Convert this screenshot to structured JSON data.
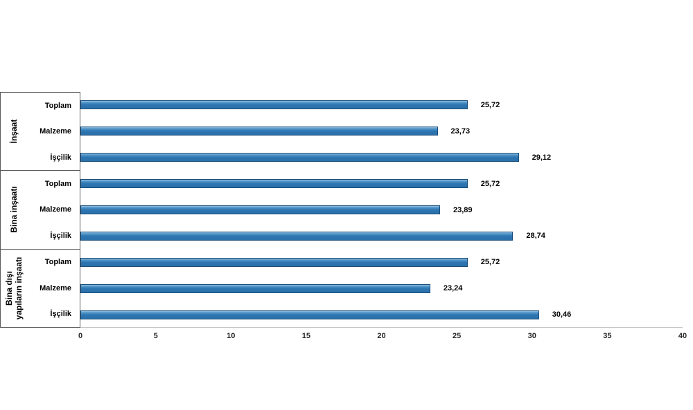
{
  "chart_data": {
    "type": "bar",
    "orientation": "horizontal",
    "title": "",
    "xlabel": "",
    "ylabel": "",
    "xlim": [
      0,
      40
    ],
    "x_ticks": [
      0,
      5,
      10,
      15,
      20,
      25,
      30,
      35,
      40
    ],
    "x_tick_labels": [
      "0",
      "5",
      "10",
      "15",
      "20",
      "25",
      "30",
      "35",
      "40"
    ],
    "grid": false,
    "legend": false,
    "decimal_separator": ",",
    "groups": [
      {
        "name": "İnşaat",
        "rows": [
          {
            "label": "Toplam",
            "value": 25.72,
            "value_label": "25,72"
          },
          {
            "label": "Malzeme",
            "value": 23.73,
            "value_label": "23,73"
          },
          {
            "label": "İşçilik",
            "value": 29.12,
            "value_label": "29,12"
          }
        ]
      },
      {
        "name": "Bina inşaatı",
        "rows": [
          {
            "label": "Toplam",
            "value": 25.72,
            "value_label": "25,72"
          },
          {
            "label": "Malzeme",
            "value": 23.89,
            "value_label": "23,89"
          },
          {
            "label": "İşçilik",
            "value": 28.74,
            "value_label": "28,74"
          }
        ]
      },
      {
        "name": "Bina dışı\nyapıların inşaatı",
        "rows": [
          {
            "label": "Toplam",
            "value": 25.72,
            "value_label": "25,72"
          },
          {
            "label": "Malzeme",
            "value": 23.24,
            "value_label": "23,24"
          },
          {
            "label": "İşçilik",
            "value": 30.46,
            "value_label": "30,46"
          }
        ]
      }
    ],
    "colors": {
      "bar_fill": "#2E76B2",
      "bar_border": "#1C4E79",
      "label_box_border": "#595959",
      "axis_line": "#C3C3C3",
      "text": "#000000"
    }
  }
}
